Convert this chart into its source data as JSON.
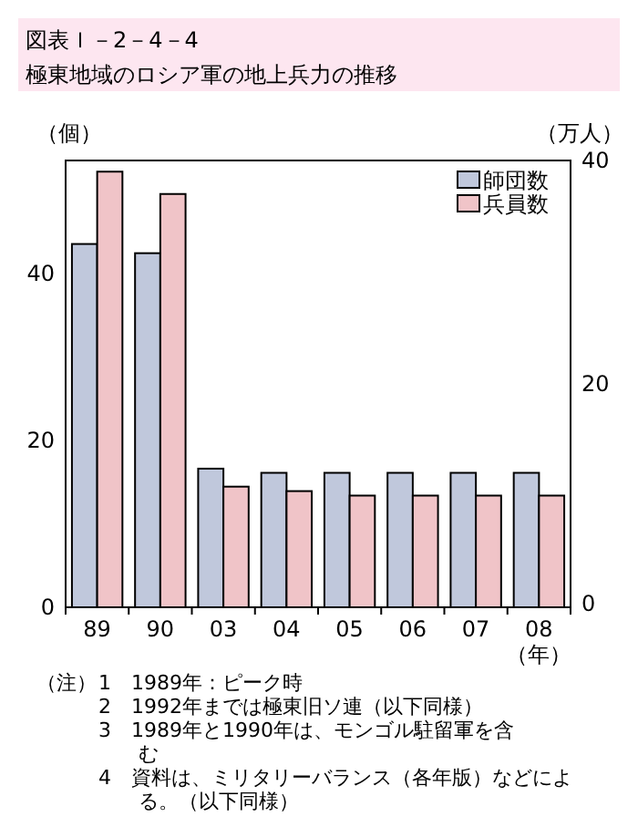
{
  "chart_data": {
    "type": "bar",
    "title": "図表Ｉ－2－4－4",
    "subtitle": "極東地域のロシア軍の地上兵力の推移",
    "categories": [
      "89",
      "90",
      "03",
      "04",
      "05",
      "06",
      "07",
      "08"
    ],
    "series": [
      {
        "name": "師団数",
        "color": "#c0c8dc",
        "values": [
          43.5,
          42.4,
          16.6,
          16.1,
          16.1,
          16.1,
          16.1,
          16.1
        ]
      },
      {
        "name": "兵員数",
        "color": "#f0c4c8",
        "axis": "y2",
        "values": [
          39,
          37,
          10.8,
          10.4,
          10,
          10,
          10,
          10
        ]
      }
    ],
    "ylabel": "（個）",
    "y2label": "（万人）",
    "xlabel": "（年）",
    "ylim": [
      0,
      53.5
    ],
    "yticks": [
      0,
      20,
      40
    ],
    "y2lim": [
      0,
      40
    ],
    "y2ticks": [
      0,
      20,
      40
    ],
    "legend": "top right",
    "grid": false,
    "annotations": [
      "（注）",
      "1　1989年：ピーク時",
      "2　1992年までは極東旧ソ連（以下同様）",
      "3　1989年と1990年は、モンゴル駐留軍を含む",
      "4　資料は、ミリタリーバランス（各年版）などによる。（以下同様）"
    ]
  }
}
